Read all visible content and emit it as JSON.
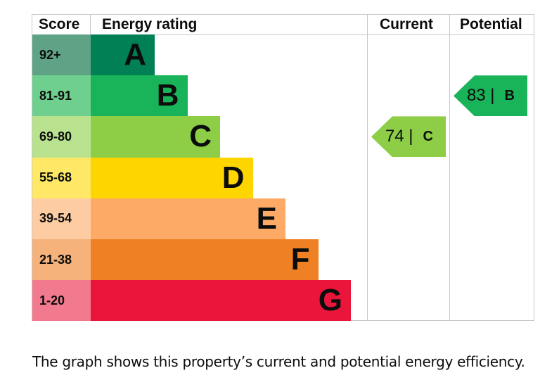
{
  "chart_data": {
    "type": "bar",
    "title": "Energy rating",
    "headers": {
      "score": "Score",
      "rating": "Energy rating",
      "current": "Current",
      "potential": "Potential"
    },
    "bands": [
      {
        "letter": "A",
        "range": "92+",
        "color": "#008054",
        "tint": "#5fa386"
      },
      {
        "letter": "B",
        "range": "81-91",
        "color": "#19b459",
        "tint": "#6fcf8f"
      },
      {
        "letter": "C",
        "range": "69-80",
        "color": "#8dce46",
        "tint": "#b9e28f"
      },
      {
        "letter": "D",
        "range": "55-68",
        "color": "#ffd500",
        "tint": "#ffe866"
      },
      {
        "letter": "E",
        "range": "39-54",
        "color": "#fcaa65",
        "tint": "#fdcca2"
      },
      {
        "letter": "F",
        "range": "21-38",
        "color": "#ef8023",
        "tint": "#f5b27a"
      },
      {
        "letter": "G",
        "range": "1-20",
        "color": "#e9153b",
        "tint": "#f27a8f"
      }
    ],
    "current": {
      "score": 74,
      "score_label": "74 |",
      "letter": "C"
    },
    "potential": {
      "score": 83,
      "score_label": "83 |",
      "letter": "B"
    }
  },
  "caption": "The graph shows this property’s current and potential energy efficiency."
}
